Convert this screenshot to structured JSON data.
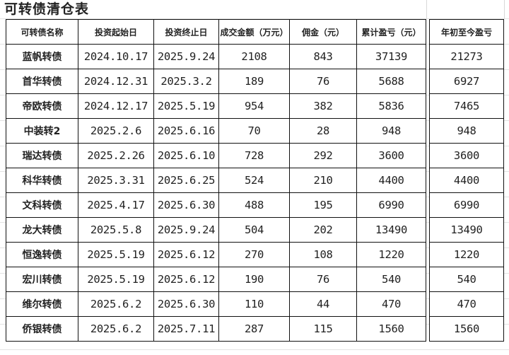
{
  "title": "可转债清仓表",
  "headers": [
    "可转债名称",
    "投资起始日",
    "投资终止日",
    "成交金额（万元）",
    "佣金（元）",
    "累计盈亏（元）",
    "年初至今盈亏"
  ],
  "rows": [
    [
      "蓝帆转债",
      "2024.10.17",
      "2025.9.24",
      "2108",
      "843",
      "37139",
      "21273"
    ],
    [
      "首华转债",
      "2024.12.31",
      "2025.3.2",
      "189",
      "76",
      "5688",
      "6927"
    ],
    [
      "帝欧转债",
      "2024.12.17",
      "2025.5.19",
      "954",
      "382",
      "5836",
      "7465"
    ],
    [
      "中装转2",
      "2025.2.6",
      "2025.6.16",
      "70",
      "28",
      "948",
      "948"
    ],
    [
      "瑞达转债",
      "2025.2.26",
      "2025.6.10",
      "728",
      "292",
      "3600",
      "3600"
    ],
    [
      "科华转债",
      "2025.3.31",
      "2025.6.25",
      "524",
      "210",
      "4400",
      "4400"
    ],
    [
      "文科转债",
      "2025.4.17",
      "2025.6.30",
      "488",
      "195",
      "6990",
      "6990"
    ],
    [
      "龙大转债",
      "2025.5.8",
      "2025.9.24",
      "504",
      "202",
      "13490",
      "13490"
    ],
    [
      "恒逸转债",
      "2025.5.19",
      "2025.6.12",
      "270",
      "108",
      "1220",
      "1220"
    ],
    [
      "宏川转债",
      "2025.5.19",
      "2025.6.12",
      "190",
      "76",
      "540",
      "540"
    ],
    [
      "维尔转债",
      "2025.6.2",
      "2025.6.30",
      "110",
      "44",
      "470",
      "470"
    ],
    [
      "侨银转债",
      "2025.6.2",
      "2025.7.11",
      "287",
      "115",
      "1560",
      "1560"
    ]
  ]
}
